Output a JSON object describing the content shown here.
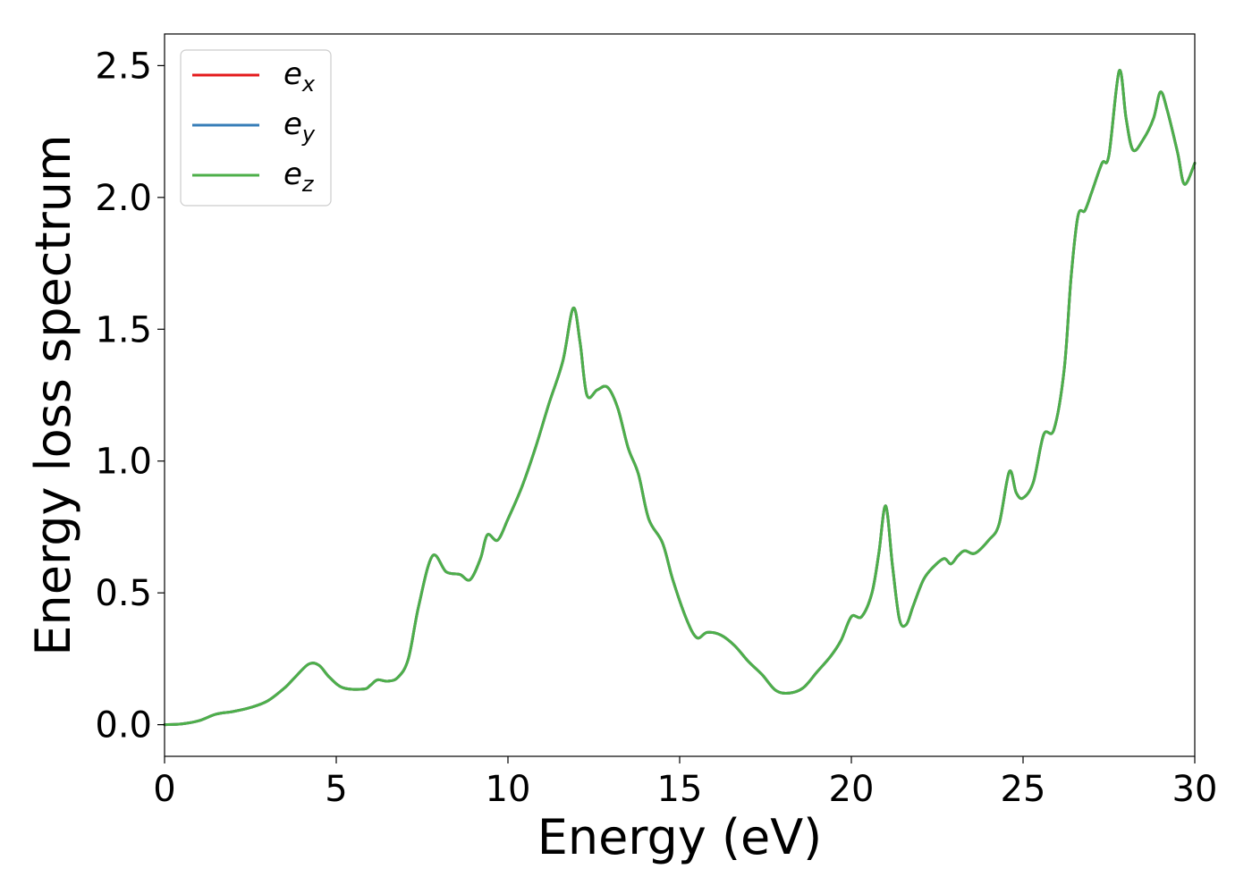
{
  "chart_data": {
    "type": "line",
    "xlabel": "Energy (eV)",
    "ylabel": "Energy loss spectrum",
    "xlim": [
      0,
      30
    ],
    "ylim": [
      -0.12,
      2.62
    ],
    "xticks": [
      "0",
      "5",
      "10",
      "15",
      "20",
      "25",
      "30"
    ],
    "yticks": [
      "0.0",
      "0.5",
      "1.0",
      "1.5",
      "2.0",
      "2.5"
    ],
    "grid": false,
    "legend_position": "top-left",
    "x": [
      0,
      0.5,
      1,
      1.5,
      2,
      2.5,
      3,
      3.5,
      3.8,
      4.2,
      4.5,
      4.8,
      5.2,
      5.8,
      6,
      6.2,
      6.5,
      6.8,
      7.1,
      7.4,
      7.8,
      8.2,
      8.6,
      8.9,
      9.2,
      9.4,
      9.7,
      10,
      10.4,
      10.8,
      11.2,
      11.6,
      11.9,
      12.1,
      12.3,
      12.6,
      12.9,
      13.2,
      13.5,
      13.8,
      14.1,
      14.5,
      14.8,
      15.2,
      15.5,
      15.8,
      16.2,
      16.6,
      17,
      17.4,
      17.8,
      18.2,
      18.6,
      19,
      19.4,
      19.7,
      20,
      20.3,
      20.6,
      20.8,
      21,
      21.2,
      21.4,
      21.6,
      21.8,
      22.1,
      22.4,
      22.7,
      22.9,
      23.1,
      23.3,
      23.6,
      24,
      24.3,
      24.6,
      24.8,
      25,
      25.3,
      25.6,
      25.9,
      26.2,
      26.4,
      26.6,
      26.8,
      27,
      27.3,
      27.5,
      27.8,
      28,
      28.2,
      28.5,
      28.8,
      29,
      29.2,
      29.5,
      29.7,
      30
    ],
    "series": [
      {
        "name": "e_x",
        "color": "#e41a1c",
        "y": [
          0,
          0.003,
          0.015,
          0.04,
          0.05,
          0.065,
          0.09,
          0.14,
          0.18,
          0.23,
          0.225,
          0.18,
          0.14,
          0.135,
          0.15,
          0.17,
          0.165,
          0.18,
          0.25,
          0.45,
          0.64,
          0.58,
          0.57,
          0.55,
          0.63,
          0.72,
          0.7,
          0.78,
          0.9,
          1.05,
          1.22,
          1.38,
          1.58,
          1.45,
          1.25,
          1.27,
          1.28,
          1.2,
          1.05,
          0.95,
          0.78,
          0.69,
          0.55,
          0.4,
          0.33,
          0.35,
          0.34,
          0.3,
          0.24,
          0.19,
          0.13,
          0.12,
          0.14,
          0.2,
          0.26,
          0.32,
          0.41,
          0.41,
          0.5,
          0.65,
          0.83,
          0.6,
          0.4,
          0.38,
          0.45,
          0.55,
          0.6,
          0.63,
          0.61,
          0.64,
          0.66,
          0.65,
          0.7,
          0.76,
          0.96,
          0.88,
          0.86,
          0.92,
          1.1,
          1.12,
          1.35,
          1.7,
          1.93,
          1.95,
          2.02,
          2.13,
          2.16,
          2.48,
          2.3,
          2.18,
          2.22,
          2.3,
          2.4,
          2.33,
          2.17,
          2.05,
          2.13
        ]
      },
      {
        "name": "e_y",
        "color": "#377eb8",
        "y": [
          0,
          0.003,
          0.015,
          0.04,
          0.05,
          0.065,
          0.09,
          0.14,
          0.18,
          0.23,
          0.225,
          0.18,
          0.14,
          0.135,
          0.15,
          0.17,
          0.165,
          0.18,
          0.25,
          0.45,
          0.64,
          0.58,
          0.57,
          0.55,
          0.63,
          0.72,
          0.7,
          0.78,
          0.9,
          1.05,
          1.22,
          1.38,
          1.58,
          1.45,
          1.25,
          1.27,
          1.28,
          1.2,
          1.05,
          0.95,
          0.78,
          0.69,
          0.55,
          0.4,
          0.33,
          0.35,
          0.34,
          0.3,
          0.24,
          0.19,
          0.13,
          0.12,
          0.14,
          0.2,
          0.26,
          0.32,
          0.41,
          0.41,
          0.5,
          0.65,
          0.83,
          0.6,
          0.4,
          0.38,
          0.45,
          0.55,
          0.6,
          0.63,
          0.61,
          0.64,
          0.66,
          0.65,
          0.7,
          0.76,
          0.96,
          0.88,
          0.86,
          0.92,
          1.1,
          1.12,
          1.35,
          1.7,
          1.93,
          1.95,
          2.02,
          2.13,
          2.16,
          2.48,
          2.3,
          2.18,
          2.22,
          2.3,
          2.4,
          2.33,
          2.17,
          2.05,
          2.13
        ]
      },
      {
        "name": "e_z",
        "color": "#4daf4a",
        "y": [
          0,
          0.003,
          0.015,
          0.04,
          0.05,
          0.065,
          0.09,
          0.14,
          0.18,
          0.23,
          0.225,
          0.18,
          0.14,
          0.135,
          0.15,
          0.17,
          0.165,
          0.18,
          0.25,
          0.45,
          0.64,
          0.58,
          0.57,
          0.55,
          0.63,
          0.72,
          0.7,
          0.78,
          0.9,
          1.05,
          1.22,
          1.38,
          1.58,
          1.45,
          1.25,
          1.27,
          1.28,
          1.2,
          1.05,
          0.95,
          0.78,
          0.69,
          0.55,
          0.4,
          0.33,
          0.35,
          0.34,
          0.3,
          0.24,
          0.19,
          0.13,
          0.12,
          0.14,
          0.2,
          0.26,
          0.32,
          0.41,
          0.41,
          0.5,
          0.65,
          0.83,
          0.6,
          0.4,
          0.38,
          0.45,
          0.55,
          0.6,
          0.63,
          0.61,
          0.64,
          0.66,
          0.65,
          0.7,
          0.76,
          0.96,
          0.88,
          0.86,
          0.92,
          1.1,
          1.12,
          1.35,
          1.7,
          1.93,
          1.95,
          2.02,
          2.13,
          2.16,
          2.48,
          2.3,
          2.18,
          2.22,
          2.3,
          2.4,
          2.33,
          2.17,
          2.05,
          2.13
        ]
      }
    ],
    "legend": [
      {
        "base": "e",
        "sub": "x",
        "color": "#e41a1c"
      },
      {
        "base": "e",
        "sub": "y",
        "color": "#377eb8"
      },
      {
        "base": "e",
        "sub": "z",
        "color": "#4daf4a"
      }
    ]
  }
}
